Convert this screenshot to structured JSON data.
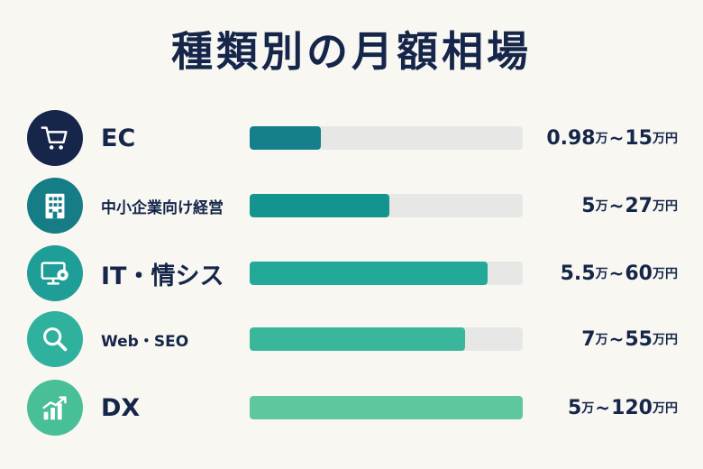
{
  "title": "種類別の月額相場",
  "chart_data": {
    "type": "bar",
    "orientation": "horizontal",
    "categories": [
      "EC",
      "中小企業向け経営",
      "IT・情シス",
      "Web・SEO",
      "DX"
    ],
    "values": [
      0.26,
      0.51,
      0.87,
      0.79,
      1.0
    ],
    "ranges": [
      {
        "min": "0.98",
        "min_unit": "万",
        "sep": "~",
        "max": "15",
        "max_unit": "万円"
      },
      {
        "min": "5",
        "min_unit": "万",
        "sep": "~",
        "max": "27",
        "max_unit": "万円"
      },
      {
        "min": "5.5",
        "min_unit": "万",
        "sep": "~",
        "max": "60",
        "max_unit": "万円"
      },
      {
        "min": "7",
        "min_unit": "万",
        "sep": "~",
        "max": "55",
        "max_unit": "万円"
      },
      {
        "min": "5",
        "min_unit": "万",
        "sep": "~",
        "max": "120",
        "max_unit": "万円"
      }
    ],
    "icons": [
      "cart-icon",
      "building-icon",
      "monitor-gear-icon",
      "magnifier-icon",
      "growth-chart-icon"
    ],
    "icon_colors": [
      "#16264a",
      "#167c86",
      "#1f9d97",
      "#2fb19d",
      "#48bf96"
    ],
    "bar_colors": [
      "#15808b",
      "#13948e",
      "#22a998",
      "#3ab79b",
      "#5fc79e"
    ],
    "track_color": "#e7e7e5",
    "xlim": [
      0,
      1
    ]
  }
}
